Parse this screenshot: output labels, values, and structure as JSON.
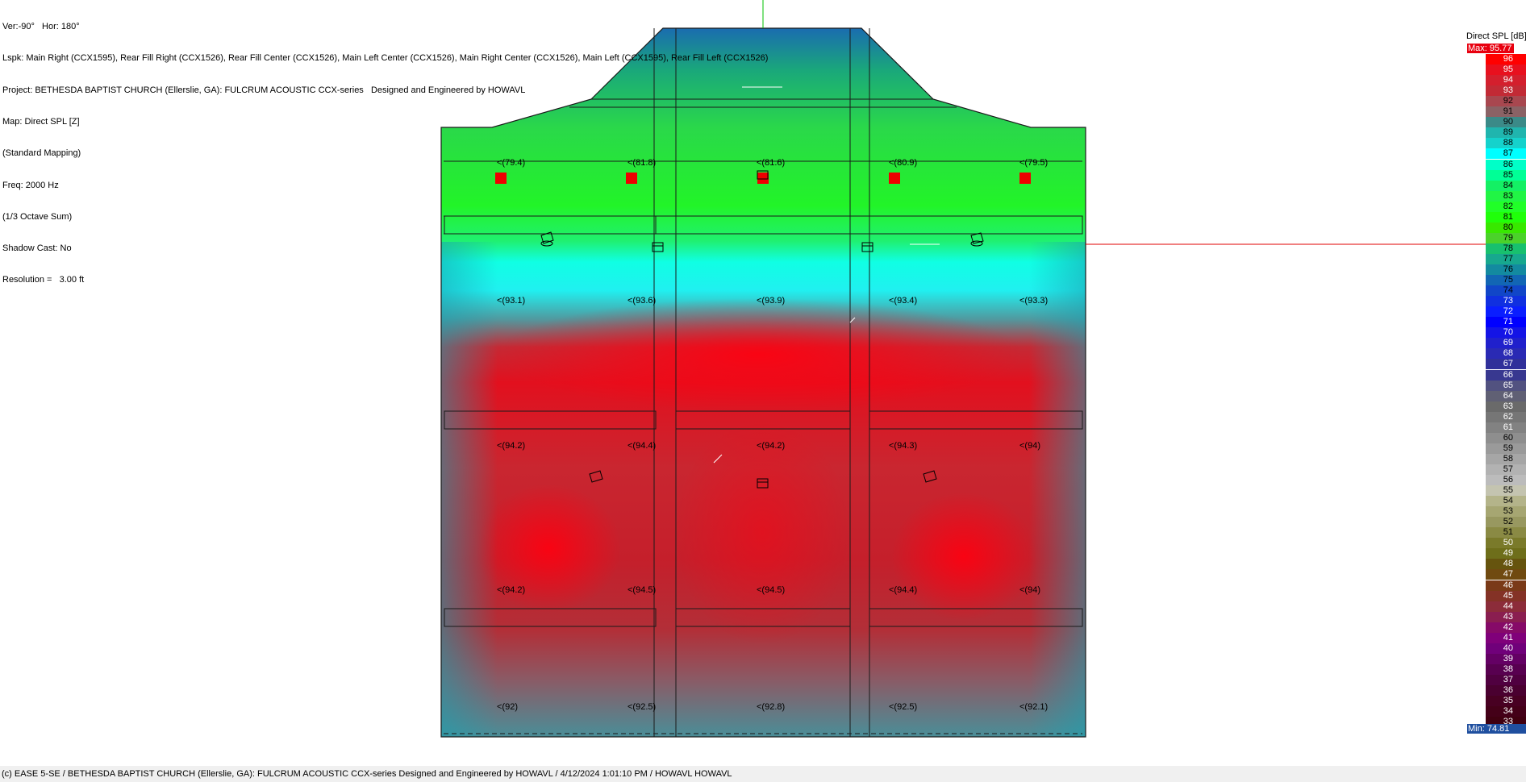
{
  "info": {
    "lines": [
      "Ver:-90°   Hor: 180°",
      "Lspk: Main Right (CCX1595), Rear Fill Right (CCX1526), Rear Fill Center (CCX1526), Main Left Center (CCX1526), Main Right Center (CCX1526), Main Left (CCX1595), Rear Fill Left (CCX1526)",
      "Project: BETHESDA BAPTIST CHURCH (Ellerslie, GA): FULCRUM ACOUSTIC CCX-series   Designed and Engineered by HOWAVL",
      "Map: Direct SPL [Z]",
      "(Standard Mapping)",
      "Freq: 2000 Hz",
      "(1/3 Octave Sum)",
      "Shadow Cast: No",
      "Resolution =   3.00 ft"
    ]
  },
  "legend": {
    "title": "Direct SPL [dB]",
    "max_label": "Max:  95.77",
    "min_label": "Min:  74.81",
    "scale": [
      "96",
      "95",
      "94",
      "93",
      "92",
      "91",
      "90",
      "89",
      "88",
      "87",
      "86",
      "85",
      "84",
      "83",
      "82",
      "81",
      "80",
      "79",
      "78",
      "77",
      "76",
      "75",
      "74",
      "73",
      "72",
      "71",
      "70",
      "69",
      "68",
      "67",
      "66",
      "65",
      "64",
      "63",
      "62",
      "61",
      "60",
      "59",
      "58",
      "57",
      "56",
      "55",
      "54",
      "53",
      "52",
      "51",
      "50",
      "49",
      "48",
      "47",
      "46",
      "45",
      "44",
      "43",
      "42",
      "41",
      "40",
      "39",
      "38",
      "37",
      "36",
      "35",
      "34",
      "33"
    ],
    "colors": [
      "#ff0000",
      "#e8101e",
      "#d41f2d",
      "#c22a35",
      "#a8474f",
      "#8a6265",
      "#3b8a88",
      "#20b5ae",
      "#15d2cc",
      "#00ffff",
      "#00ffc8",
      "#00ff96",
      "#14f064",
      "#21f545",
      "#21ff28",
      "#20ff0a",
      "#38e800",
      "#4bd22a",
      "#18c06e",
      "#17a88e",
      "#138aa0",
      "#1266b4",
      "#1146c8",
      "#1030e0",
      "#0a1eff",
      "#0000ff",
      "#1414e6",
      "#2020cc",
      "#2a2ab4",
      "#30309a",
      "#383890",
      "#525280",
      "#606074",
      "#6a6a6a",
      "#767676",
      "#828282",
      "#8e8e8e",
      "#9a9a9a",
      "#a6a6a6",
      "#b2b2b2",
      "#bcbcbc",
      "#c4c4b0",
      "#b4b48a",
      "#a6a672",
      "#989860",
      "#8a8a44",
      "#7a7a2a",
      "#6e6e1a",
      "#66540e",
      "#704a10",
      "#7a3a18",
      "#843226",
      "#8c2c3a",
      "#8a1e50",
      "#860a68",
      "#80007a",
      "#70007a",
      "#640064",
      "#580050",
      "#500040",
      "#4a0030",
      "#480022",
      "#440018",
      "#400010"
    ]
  },
  "measurements": [
    "(79.4)",
    "(81.8)",
    "(81.6)",
    "(80.9)",
    "(79.5)",
    "(93.1)",
    "(93.6)",
    "(93.9)",
    "(93.4)",
    "(93.3)",
    "(94.2)",
    "(94.4)",
    "(94.2)",
    "(94.3)",
    "(94)",
    "(94.2)",
    "(94.5)",
    "(94.5)",
    "(94.4)",
    "(94)",
    "(92)",
    "(92.5)",
    "(92.8)",
    "(92.5)",
    "(92.1)"
  ],
  "footer": "(c) EASE 5-SE   / BETHESDA BAPTIST CHURCH (Ellerslie, GA): FULCRUM ACOUSTIC CCX-series   Designed and Engineered by HOWAVL   / 4/12/2024 1:01:10 PM / HOWAVL HOWAVL"
}
